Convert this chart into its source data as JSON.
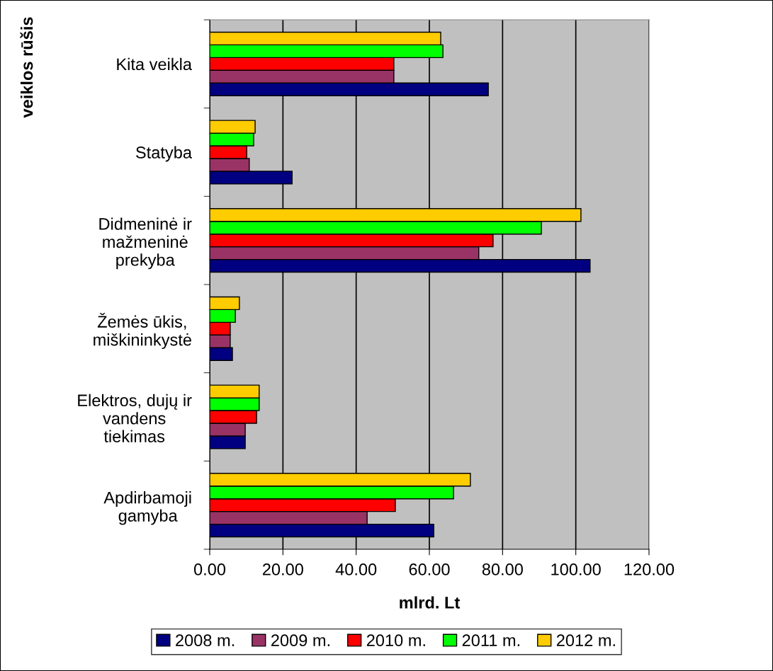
{
  "chart_data": {
    "type": "bar",
    "orientation": "horizontal",
    "xlabel": "mlrd. Lt",
    "ylabel": "veiklos rūšis",
    "categories": [
      "Kita veikla",
      "Statyba",
      "Didmeninė ir\nmažmeninė\nprekyba",
      "Žemės ūkis,\nmiškininkystė",
      "Elektros, dujų ir\nvandens\ntiekimas",
      "Apdirbamoji\ngamyba"
    ],
    "series": [
      {
        "name": "2008 m.",
        "color": "#000080",
        "values": [
          76.1,
          22.5,
          103.9,
          6.2,
          9.7,
          61.2
        ]
      },
      {
        "name": "2009 m.",
        "color": "#993366",
        "values": [
          50.3,
          10.8,
          73.5,
          5.6,
          9.7,
          43.0
        ]
      },
      {
        "name": "2010 m.",
        "color": "#ff0000",
        "values": [
          50.3,
          10.1,
          77.4,
          5.6,
          12.8,
          50.7
        ]
      },
      {
        "name": "2011 m.",
        "color": "#00ff00",
        "values": [
          63.7,
          12.0,
          90.6,
          7.0,
          13.5,
          66.6
        ]
      },
      {
        "name": "2012 m.",
        "color": "#ffcc00",
        "values": [
          63.1,
          12.4,
          101.4,
          8.1,
          13.5,
          71.2
        ]
      }
    ],
    "xlim": [
      0,
      120
    ],
    "xticks": [
      {
        "value": 0,
        "label": "0.00"
      },
      {
        "value": 20,
        "label": "20.00"
      },
      {
        "value": 40,
        "label": "40.00"
      },
      {
        "value": 60,
        "label": "60.00"
      },
      {
        "value": 80,
        "label": "80.00"
      },
      {
        "value": 100,
        "label": "100.00"
      },
      {
        "value": 120,
        "label": "120.00"
      }
    ],
    "grid": "x",
    "legend": "bottom"
  }
}
